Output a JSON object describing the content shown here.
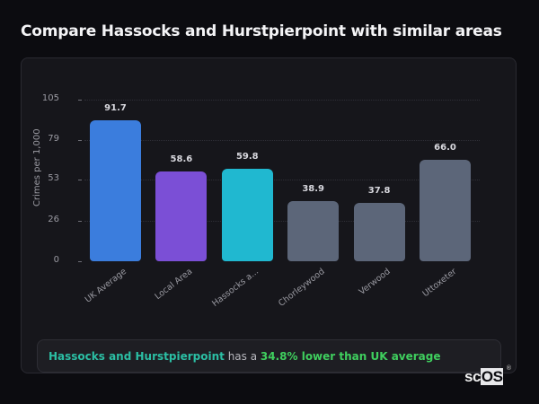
{
  "header": {
    "title": "Compare Hassocks and Hurstpierpoint with similar areas"
  },
  "chart_data": {
    "type": "bar",
    "title": "Compare Hassocks and Hurstpierpoint with similar areas",
    "xlabel": "",
    "ylabel": "Crimes per 1,000",
    "ylim": [
      0,
      105
    ],
    "yticks": [
      0,
      26,
      53,
      79,
      105
    ],
    "grid": true,
    "categories": [
      "UK Average",
      "Local Area",
      "Hassocks a...",
      "Chorleywood",
      "Verwood",
      "Uttoxeter"
    ],
    "values": [
      91.7,
      58.6,
      59.8,
      38.9,
      37.8,
      66.0
    ],
    "value_labels": [
      "91.7",
      "58.6",
      "59.8",
      "38.9",
      "37.8",
      "66.0"
    ],
    "colors": [
      "#3b7ddd",
      "#7b4fd6",
      "#20b8d0",
      "#5c6679",
      "#5c6679",
      "#5c6679"
    ]
  },
  "summary": {
    "area_name": "Hassocks and Hurstpierpoint",
    "connector": " has a ",
    "statistic": "34.8% lower than UK average"
  },
  "branding": {
    "logo_prefix": "sc",
    "logo_suffix": "OS",
    "registered": "®"
  }
}
